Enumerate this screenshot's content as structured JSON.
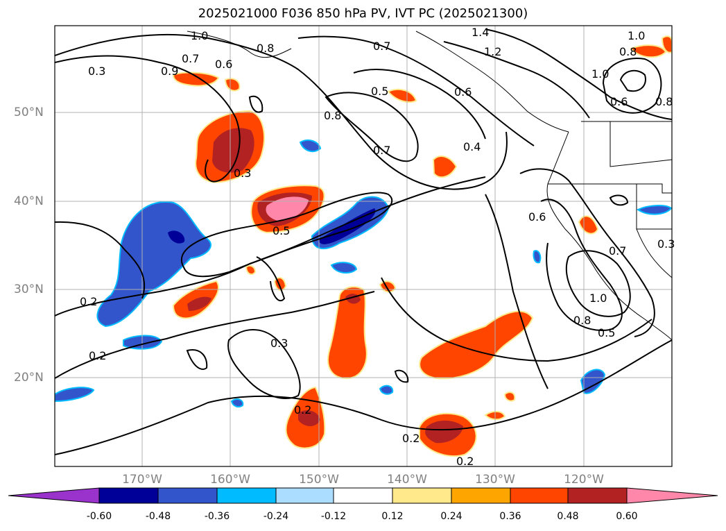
{
  "title": "2025021000 F036 850 hPa PV, IVT PC (2025021300)",
  "lat_labels": [
    "50°N",
    "40°N",
    "30°N",
    "20°N"
  ],
  "lon_labels": [
    "170°W",
    "160°W",
    "150°W",
    "140°W",
    "130°W",
    "120°W"
  ],
  "contour_labels": [
    "1.0",
    "0.7",
    "0.8",
    "0.6",
    "0.3",
    "0.9",
    "0.7",
    "0.5",
    "0.8",
    "0.7",
    "0.4",
    "0.3",
    "0.5",
    "0.2",
    "0.2",
    "0.3",
    "0.2",
    "0.2",
    "1.4",
    "1.2",
    "0.6",
    "1.0",
    "0.8",
    "1.0",
    "0.6",
    "0.8",
    "0.6",
    "0.7",
    "0.3",
    "1.0",
    "0.8",
    "0.5",
    "0.2"
  ],
  "colorbar": {
    "labels": [
      "-0.60",
      "-0.48",
      "-0.36",
      "-0.24",
      "-0.12",
      "0.12",
      "0.24",
      "0.36",
      "0.48",
      "0.60"
    ],
    "colors": [
      "#9933cc",
      "#000099",
      "#3355cc",
      "#00bbff",
      "#aaddff",
      "#ffffff",
      "#ffe98a",
      "#ffa500",
      "#ff4500",
      "#b22222",
      "#ff88aa"
    ]
  },
  "fill_colors": {
    "neg_strong": "#000099",
    "neg_mid": "#3355cc",
    "neg_light": "#00bbff",
    "pos_light": "#ffe98a",
    "pos_mid": "#ff4500",
    "pos_strong": "#b22222",
    "pos_max": "#ff88aa"
  }
}
